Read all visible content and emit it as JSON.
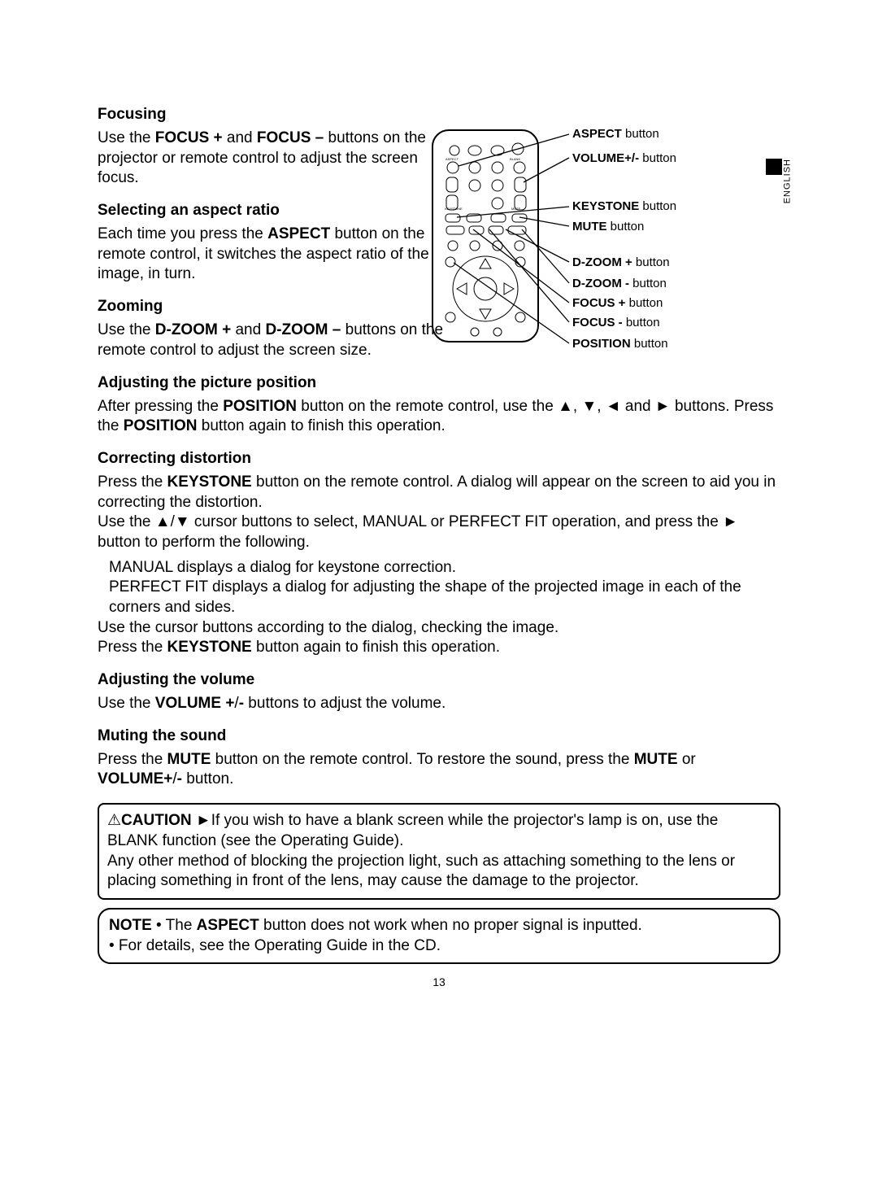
{
  "lang_tab": "ENGLISH",
  "page_number": "13",
  "sections": {
    "focusing": {
      "heading": "Focusing",
      "body_html": "Use the <b>FOCUS +</b> and <b>FOCUS –</b> buttons on the projector or remote control to adjust the screen focus."
    },
    "aspect": {
      "heading": "Selecting an aspect ratio",
      "body_html": "Each time you press the <b>ASPECT</b> button on the remote control, it switches the aspect ratio of the image, in turn."
    },
    "zooming": {
      "heading": "Zooming",
      "body_html": "Use the <b>D-ZOOM +</b> and <b>D-ZOOM –</b> buttons on the remote control to adjust the screen size."
    },
    "position": {
      "heading": "Adjusting the picture position",
      "body_html": "After pressing the <b>POSITION</b> button on the remote control, use the ▲, ▼, ◄ and ► buttons. Press the <b>POSITION</b> button again to finish this operation."
    },
    "distortion": {
      "heading": "Correcting distortion",
      "body1_html": "Press the <b>KEYSTONE</b> button on the remote control. A dialog will appear on the screen to aid you in correcting the distortion.",
      "body2_html": "Use the ▲/▼ cursor buttons to select, MANUAL or PERFECT FIT operation, and press the ► button to perform the following.",
      "sub1": "MANUAL displays a dialog for keystone correction.",
      "sub2": "PERFECT FIT displays a dialog for adjusting the shape of the projected image in each of the corners and sides.",
      "body3": "Use the cursor buttons according to the dialog, checking the image.",
      "body4_html": "Press the <b>KEYSTONE</b> button again to finish this operation."
    },
    "volume": {
      "heading": "Adjusting the volume",
      "body_html": "Use the <b>VOLUME +</b>/<b>-</b> buttons to adjust the volume."
    },
    "mute": {
      "heading": "Muting the sound",
      "body_html": "Press the <b>MUTE</b> button on the remote control. To restore the sound, press the <b>MUTE</b> or <b>VOLUME+</b>/<b>-</b> button."
    }
  },
  "caution_html": "⚠<b>CAUTION</b>  ►If you wish to have a blank screen while the projector's lamp is on, use the BLANK function (see the Operating Guide).<br>Any other method of blocking the projection light, such as attaching something to the lens or placing something in front of the lens, may cause the damage to the projector.",
  "note_html": "<b>NOTE</b>  • The <b>ASPECT</b> button does not work when no proper signal is inputted.<br>• For details, see the Operating Guide in the CD.",
  "remote_labels": {
    "aspect": "ASPECT",
    "aspect_suf": " button",
    "volume": "VOLUME+/-",
    "volume_suf": " button",
    "keystone": "KEYSTONE",
    "keystone_suf": " button",
    "mute": "MUTE",
    "mute_suf": " button",
    "dzoom_plus": "D-ZOOM +",
    "dzoom_plus_suf": " button",
    "dzoom_minus": "D-ZOOM -",
    "dzoom_minus_suf": " button",
    "focus_plus": "FOCUS +",
    "focus_plus_suf": " button",
    "focus_minus": "FOCUS -",
    "focus_minus_suf": " button",
    "position": "POSITION",
    "position_suf": " button"
  },
  "remote": {
    "body_stroke": "#000000",
    "body_fill": "#ffffff",
    "button_fill": "#ffffff",
    "button_stroke": "#000000",
    "leader_stroke": "#000000",
    "tiny_text_color": "#000000"
  }
}
